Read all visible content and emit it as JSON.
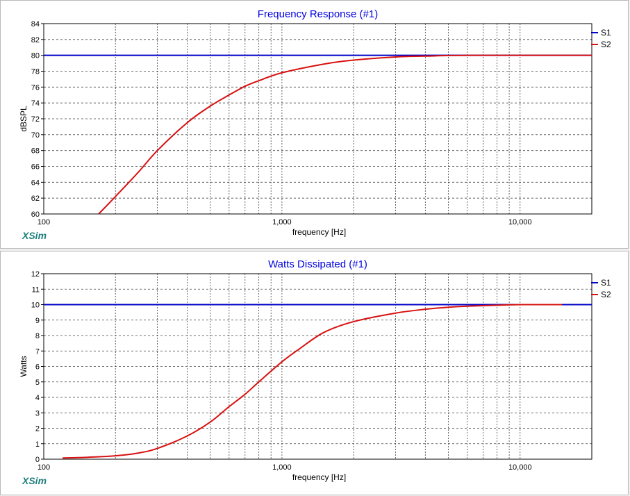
{
  "brand": "XSim",
  "chart_data": [
    {
      "type": "line",
      "title": "Frequency Response (#1)",
      "xlabel": "frequency [Hz]",
      "ylabel": "dBSPL",
      "xscale": "log",
      "xlim": [
        100,
        20000
      ],
      "ylim": [
        60,
        84
      ],
      "yticks": [
        60,
        62,
        64,
        66,
        68,
        70,
        72,
        74,
        76,
        78,
        80,
        82,
        84
      ],
      "xtick_labels": [
        {
          "x": 100,
          "label": "100"
        },
        {
          "x": 1000,
          "label": "1,000"
        },
        {
          "x": 10000,
          "label": "10,000"
        }
      ],
      "grid": true,
      "legend": "right",
      "series": [
        {
          "name": "S1",
          "color": "#0000c8",
          "x": [
            100,
            20000
          ],
          "y": [
            80,
            80
          ]
        },
        {
          "name": "S2",
          "color": "#d81010",
          "x": [
            170,
            200,
            250,
            300,
            400,
            500,
            600,
            700,
            800,
            1000,
            1500,
            2000,
            3000,
            4000,
            6000,
            20000
          ],
          "y": [
            60,
            62.2,
            65.3,
            68.0,
            71.5,
            73.6,
            75.0,
            76.1,
            76.8,
            77.8,
            78.9,
            79.4,
            79.8,
            79.9,
            80,
            80
          ]
        }
      ]
    },
    {
      "type": "line",
      "title": "Watts Dissipated (#1)",
      "xlabel": "frequency [Hz]",
      "ylabel": "Watts",
      "xscale": "log",
      "xlim": [
        100,
        20000
      ],
      "ylim": [
        0,
        12
      ],
      "yticks": [
        0,
        1,
        2,
        3,
        4,
        5,
        6,
        7,
        8,
        9,
        10,
        11,
        12
      ],
      "xtick_labels": [
        {
          "x": 100,
          "label": "100"
        },
        {
          "x": 1000,
          "label": "1,000"
        },
        {
          "x": 10000,
          "label": "10,000"
        }
      ],
      "grid": true,
      "legend": "right",
      "series": [
        {
          "name": "S1",
          "color": "#0000c8",
          "x": [
            100,
            20000
          ],
          "y": [
            10,
            10
          ]
        },
        {
          "name": "S2",
          "color": "#d81010",
          "x": [
            120,
            150,
            200,
            250,
            300,
            400,
            500,
            600,
            700,
            800,
            1000,
            1200,
            1500,
            2000,
            3000,
            4000,
            5000,
            6000,
            8000,
            10000,
            15000
          ],
          "y": [
            0.08,
            0.12,
            0.22,
            0.4,
            0.7,
            1.5,
            2.4,
            3.4,
            4.2,
            5.0,
            6.3,
            7.2,
            8.2,
            8.9,
            9.45,
            9.7,
            9.83,
            9.9,
            9.96,
            10,
            10
          ]
        }
      ]
    }
  ]
}
